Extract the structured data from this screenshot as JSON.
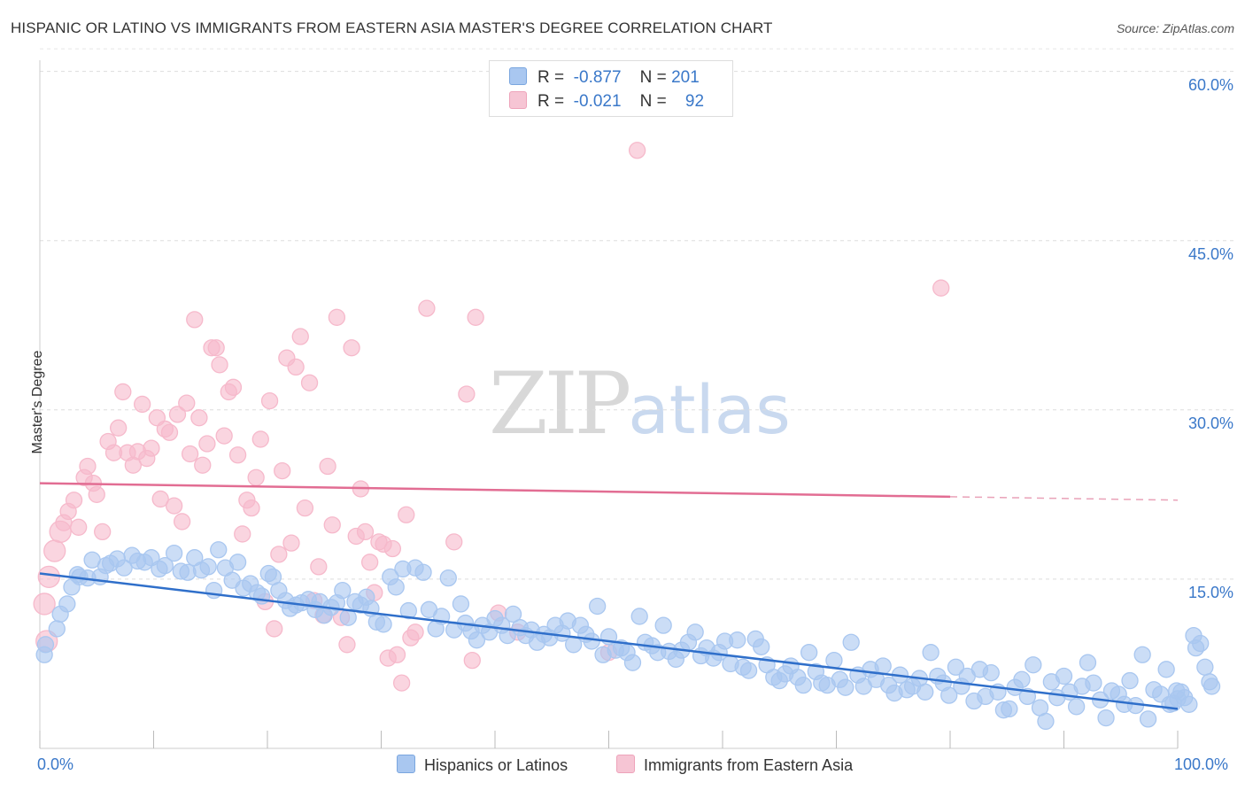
{
  "header": {
    "title": "HISPANIC OR LATINO VS IMMIGRANTS FROM EASTERN ASIA MASTER'S DEGREE CORRELATION CHART",
    "source": "Source: ZipAtlas.com"
  },
  "watermark": {
    "zip": "ZIP",
    "atlas": "atlas"
  },
  "legend": {
    "rows": [
      {
        "r_label": "R =",
        "r_value": "-0.877",
        "n_label": "N =",
        "n_value": "201",
        "color": "#a9c7f0"
      },
      {
        "r_label": "R =",
        "r_value": "-0.021",
        "n_label": "N =",
        "n_value": "92",
        "color": "#f6b9cb"
      }
    ]
  },
  "chart_data": {
    "type": "scatter",
    "title": "HISPANIC OR LATINO VS IMMIGRANTS FROM EASTERN ASIA MASTER'S DEGREE CORRELATION CHART",
    "ylabel": "Master's Degree",
    "xlabel": "",
    "xlim": [
      0,
      100
    ],
    "ylim": [
      0,
      62
    ],
    "y_ticks": [
      "15.0%",
      "30.0%",
      "45.0%",
      "60.0%"
    ],
    "y_tick_values": [
      15,
      30,
      45,
      60
    ],
    "x_tick_labels": [
      "0.0%",
      "100.0%"
    ],
    "grid": "horizontal dashed",
    "legend_position": "bottom",
    "series": [
      {
        "name": "Hispanics or Latinos",
        "color": "#3a78c9",
        "fill": "#a9c7f0",
        "trend": {
          "x": [
            0,
            100
          ],
          "y": [
            15.5,
            3.5
          ]
        },
        "points": [
          [
            0.5,
            9.2
          ],
          [
            0.4,
            8.3
          ],
          [
            1.5,
            10.6
          ],
          [
            1.8,
            11.9
          ],
          [
            2.4,
            12.8
          ],
          [
            2.8,
            14.3
          ],
          [
            3.3,
            15.4
          ],
          [
            3.5,
            15.2
          ],
          [
            4.2,
            15.1
          ],
          [
            4.6,
            16.7
          ],
          [
            5.3,
            15.2
          ],
          [
            5.8,
            16.2
          ],
          [
            6.2,
            16.4
          ],
          [
            6.8,
            16.8
          ],
          [
            7.4,
            16.0
          ],
          [
            8.1,
            17.1
          ],
          [
            8.6,
            16.6
          ],
          [
            9.2,
            16.5
          ],
          [
            9.8,
            16.9
          ],
          [
            10.5,
            15.9
          ],
          [
            11.0,
            16.2
          ],
          [
            11.8,
            17.3
          ],
          [
            12.4,
            15.7
          ],
          [
            13.0,
            15.6
          ],
          [
            13.6,
            16.9
          ],
          [
            14.2,
            15.8
          ],
          [
            14.8,
            16.1
          ],
          [
            15.3,
            14.0
          ],
          [
            15.7,
            17.6
          ],
          [
            16.3,
            16.0
          ],
          [
            16.9,
            14.9
          ],
          [
            17.4,
            16.5
          ],
          [
            17.9,
            14.2
          ],
          [
            18.5,
            14.6
          ],
          [
            19.1,
            13.8
          ],
          [
            19.5,
            13.5
          ],
          [
            20.1,
            15.5
          ],
          [
            20.5,
            15.2
          ],
          [
            21.0,
            14.0
          ],
          [
            21.6,
            13.1
          ],
          [
            22.0,
            12.4
          ],
          [
            22.5,
            12.7
          ],
          [
            23.0,
            12.9
          ],
          [
            23.6,
            13.2
          ],
          [
            24.2,
            12.3
          ],
          [
            24.6,
            13.0
          ],
          [
            25.0,
            11.8
          ],
          [
            25.6,
            12.5
          ],
          [
            26.1,
            12.9
          ],
          [
            26.6,
            14.0
          ],
          [
            27.1,
            11.6
          ],
          [
            27.7,
            13.0
          ],
          [
            28.2,
            12.7
          ],
          [
            28.7,
            13.4
          ],
          [
            29.1,
            12.4
          ],
          [
            29.6,
            11.2
          ],
          [
            30.2,
            11.0
          ],
          [
            30.8,
            15.2
          ],
          [
            31.3,
            14.3
          ],
          [
            31.9,
            15.9
          ],
          [
            32.4,
            12.2
          ],
          [
            33.0,
            16.0
          ],
          [
            33.7,
            15.6
          ],
          [
            34.2,
            12.3
          ],
          [
            34.8,
            10.6
          ],
          [
            35.3,
            11.7
          ],
          [
            35.9,
            15.1
          ],
          [
            36.4,
            10.5
          ],
          [
            37.0,
            12.8
          ],
          [
            37.4,
            11.1
          ],
          [
            37.9,
            10.4
          ],
          [
            38.4,
            9.6
          ],
          [
            38.9,
            10.9
          ],
          [
            39.5,
            10.3
          ],
          [
            40.0,
            11.5
          ],
          [
            40.6,
            10.9
          ],
          [
            41.1,
            10.0
          ],
          [
            41.6,
            11.9
          ],
          [
            42.2,
            10.7
          ],
          [
            42.7,
            10.0
          ],
          [
            43.2,
            10.5
          ],
          [
            43.7,
            9.4
          ],
          [
            44.3,
            10.1
          ],
          [
            44.8,
            9.8
          ],
          [
            45.3,
            10.9
          ],
          [
            45.9,
            10.2
          ],
          [
            46.4,
            11.3
          ],
          [
            46.9,
            9.2
          ],
          [
            47.5,
            10.9
          ],
          [
            48.0,
            10.1
          ],
          [
            48.5,
            9.5
          ],
          [
            49.0,
            12.6
          ],
          [
            49.5,
            8.3
          ],
          [
            50.0,
            9.9
          ],
          [
            50.6,
            8.7
          ],
          [
            51.1,
            8.9
          ],
          [
            51.6,
            8.5
          ],
          [
            52.1,
            7.6
          ],
          [
            52.7,
            11.7
          ],
          [
            53.2,
            9.4
          ],
          [
            53.8,
            9.1
          ],
          [
            54.3,
            8.5
          ],
          [
            54.8,
            10.9
          ],
          [
            55.3,
            8.6
          ],
          [
            55.9,
            7.9
          ],
          [
            56.4,
            8.7
          ],
          [
            57.0,
            9.4
          ],
          [
            57.6,
            10.3
          ],
          [
            58.1,
            8.2
          ],
          [
            58.6,
            8.9
          ],
          [
            59.2,
            8.0
          ],
          [
            59.7,
            8.5
          ],
          [
            60.2,
            9.5
          ],
          [
            60.7,
            7.5
          ],
          [
            61.3,
            9.6
          ],
          [
            61.8,
            7.2
          ],
          [
            62.3,
            6.9
          ],
          [
            62.9,
            9.7
          ],
          [
            63.4,
            9.0
          ],
          [
            63.9,
            7.4
          ],
          [
            64.5,
            6.3
          ],
          [
            65.0,
            6.0
          ],
          [
            65.5,
            6.6
          ],
          [
            66.0,
            7.3
          ],
          [
            66.6,
            6.3
          ],
          [
            67.1,
            5.6
          ],
          [
            67.6,
            8.5
          ],
          [
            68.2,
            6.8
          ],
          [
            68.7,
            5.8
          ],
          [
            69.2,
            5.6
          ],
          [
            69.8,
            7.8
          ],
          [
            70.3,
            6.1
          ],
          [
            70.8,
            5.4
          ],
          [
            71.3,
            9.4
          ],
          [
            71.9,
            6.5
          ],
          [
            72.4,
            5.5
          ],
          [
            73.0,
            7.0
          ],
          [
            73.5,
            6.1
          ],
          [
            74.1,
            7.3
          ],
          [
            74.6,
            5.6
          ],
          [
            75.1,
            4.9
          ],
          [
            75.6,
            6.5
          ],
          [
            76.2,
            5.2
          ],
          [
            76.7,
            5.5
          ],
          [
            77.3,
            6.2
          ],
          [
            77.8,
            5.0
          ],
          [
            78.3,
            8.5
          ],
          [
            78.9,
            6.4
          ],
          [
            79.4,
            5.8
          ],
          [
            79.9,
            4.7
          ],
          [
            80.5,
            7.2
          ],
          [
            81.0,
            5.5
          ],
          [
            81.5,
            6.4
          ],
          [
            82.1,
            4.2
          ],
          [
            82.6,
            7.0
          ],
          [
            83.1,
            4.6
          ],
          [
            83.6,
            6.7
          ],
          [
            84.2,
            5.0
          ],
          [
            84.7,
            3.4
          ],
          [
            85.2,
            3.5
          ],
          [
            85.7,
            5.4
          ],
          [
            86.3,
            6.1
          ],
          [
            86.8,
            4.6
          ],
          [
            87.3,
            7.4
          ],
          [
            87.9,
            3.6
          ],
          [
            88.4,
            2.4
          ],
          [
            88.9,
            5.9
          ],
          [
            89.4,
            4.5
          ],
          [
            90.0,
            6.4
          ],
          [
            90.5,
            5.0
          ],
          [
            91.1,
            3.7
          ],
          [
            91.6,
            5.5
          ],
          [
            92.1,
            7.6
          ],
          [
            92.6,
            5.8
          ],
          [
            93.2,
            4.3
          ],
          [
            93.7,
            2.7
          ],
          [
            94.2,
            5.1
          ],
          [
            94.8,
            4.8
          ],
          [
            95.3,
            3.9
          ],
          [
            95.8,
            6.0
          ],
          [
            96.3,
            3.8
          ],
          [
            96.9,
            8.3
          ],
          [
            97.4,
            2.6
          ],
          [
            97.9,
            5.2
          ],
          [
            98.5,
            4.8
          ],
          [
            99.0,
            7.0
          ],
          [
            99.3,
            3.9
          ],
          [
            99.6,
            4.0
          ],
          [
            99.9,
            5.1
          ],
          [
            100.0,
            4.4
          ],
          [
            100.3,
            5.0
          ],
          [
            100.6,
            4.5
          ],
          [
            101.0,
            3.9
          ],
          [
            101.4,
            10.0
          ],
          [
            101.6,
            8.9
          ],
          [
            102.0,
            9.3
          ],
          [
            102.4,
            7.2
          ],
          [
            102.8,
            5.9
          ],
          [
            103.0,
            5.5
          ]
        ]
      },
      {
        "name": "Immigrants from Eastern Asia",
        "color": "#e26d93",
        "fill": "#f6b9cb",
        "trend": {
          "x": [
            0,
            100
          ],
          "y": [
            23.5,
            22.0
          ]
        },
        "points": [
          [
            0.4,
            12.8
          ],
          [
            0.6,
            9.5
          ],
          [
            0.8,
            15.2
          ],
          [
            1.3,
            17.5
          ],
          [
            1.8,
            19.2
          ],
          [
            2.1,
            20.0
          ],
          [
            2.5,
            21.0
          ],
          [
            3.0,
            22.0
          ],
          [
            3.4,
            19.6
          ],
          [
            3.9,
            24.0
          ],
          [
            4.2,
            25.0
          ],
          [
            4.7,
            23.5
          ],
          [
            5.0,
            22.5
          ],
          [
            5.5,
            19.2
          ],
          [
            6.0,
            27.2
          ],
          [
            6.5,
            26.2
          ],
          [
            6.9,
            28.4
          ],
          [
            7.3,
            31.6
          ],
          [
            7.7,
            26.2
          ],
          [
            8.2,
            25.1
          ],
          [
            8.6,
            26.3
          ],
          [
            9.0,
            30.5
          ],
          [
            9.4,
            25.7
          ],
          [
            9.8,
            26.6
          ],
          [
            10.3,
            29.3
          ],
          [
            10.6,
            22.1
          ],
          [
            11.0,
            28.3
          ],
          [
            11.4,
            28.0
          ],
          [
            11.8,
            21.5
          ],
          [
            12.1,
            29.6
          ],
          [
            12.5,
            20.1
          ],
          [
            12.9,
            30.6
          ],
          [
            13.2,
            26.1
          ],
          [
            13.6,
            38.0
          ],
          [
            14.0,
            29.3
          ],
          [
            14.3,
            25.1
          ],
          [
            14.7,
            27.0
          ],
          [
            15.1,
            35.5
          ],
          [
            15.5,
            35.5
          ],
          [
            15.8,
            34.0
          ],
          [
            16.2,
            27.7
          ],
          [
            16.6,
            31.6
          ],
          [
            17.0,
            32.0
          ],
          [
            17.4,
            26.0
          ],
          [
            17.8,
            19.0
          ],
          [
            18.2,
            22.0
          ],
          [
            18.6,
            21.3
          ],
          [
            19.0,
            24.0
          ],
          [
            19.4,
            27.4
          ],
          [
            19.8,
            13.0
          ],
          [
            20.2,
            30.8
          ],
          [
            20.6,
            10.6
          ],
          [
            21.0,
            17.2
          ],
          [
            21.3,
            24.6
          ],
          [
            21.7,
            34.6
          ],
          [
            22.1,
            18.2
          ],
          [
            22.5,
            33.8
          ],
          [
            22.9,
            36.5
          ],
          [
            23.3,
            21.3
          ],
          [
            23.7,
            32.4
          ],
          [
            24.1,
            13.1
          ],
          [
            24.5,
            16.1
          ],
          [
            24.9,
            11.8
          ],
          [
            25.3,
            25.0
          ],
          [
            25.7,
            19.8
          ],
          [
            26.1,
            38.2
          ],
          [
            26.5,
            11.6
          ],
          [
            27.0,
            9.2
          ],
          [
            27.4,
            35.5
          ],
          [
            27.8,
            18.8
          ],
          [
            28.2,
            23.0
          ],
          [
            28.6,
            19.2
          ],
          [
            29.0,
            16.5
          ],
          [
            29.4,
            13.8
          ],
          [
            29.8,
            18.3
          ],
          [
            30.2,
            18.1
          ],
          [
            30.6,
            8.0
          ],
          [
            31.0,
            17.7
          ],
          [
            31.4,
            8.3
          ],
          [
            31.8,
            5.8
          ],
          [
            32.2,
            20.7
          ],
          [
            32.6,
            9.8
          ],
          [
            33.0,
            10.3
          ],
          [
            34.0,
            39.0
          ],
          [
            36.4,
            18.3
          ],
          [
            37.5,
            31.4
          ],
          [
            38.3,
            38.2
          ],
          [
            38.0,
            7.8
          ],
          [
            40.3,
            12.0
          ],
          [
            42.0,
            10.3
          ],
          [
            50.0,
            8.5
          ],
          [
            52.5,
            53.0
          ],
          [
            79.2,
            40.8
          ]
        ]
      }
    ]
  }
}
